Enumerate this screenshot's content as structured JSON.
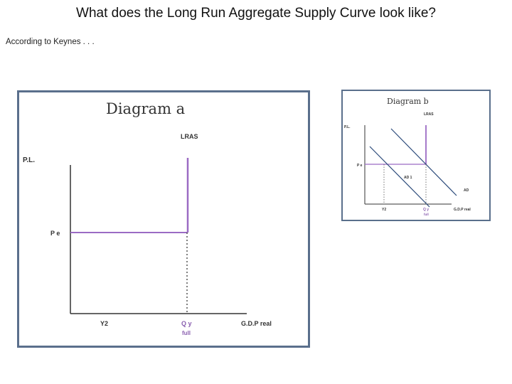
{
  "slide": {
    "title": "What does the Long Run Aggregate Supply Curve look like?",
    "subtitle": "According to Keynes . . ."
  },
  "diagram_a": {
    "title": "Diagram a",
    "y_axis_label": "P.L.",
    "x_axis_label": "G.D.P real",
    "curve_label": "LRAS",
    "price_label": "P e",
    "y2_label": "Y2",
    "qy_label": "Q y",
    "full_label": "full",
    "line_color": "#9b6bc4"
  },
  "diagram_b": {
    "title": "Diagram b",
    "y_axis_label": "P.L.",
    "x_axis_label": "G.D.P real",
    "curve_label": "LRAS",
    "price_label": "P e",
    "ad1_label": "AD 1",
    "ad_label": "AD",
    "y2_label": "Y2",
    "qy_label": "Q y",
    "full_label": "full",
    "line_color": "#9b6bc4",
    "ad_color": "#2b4a7a"
  }
}
